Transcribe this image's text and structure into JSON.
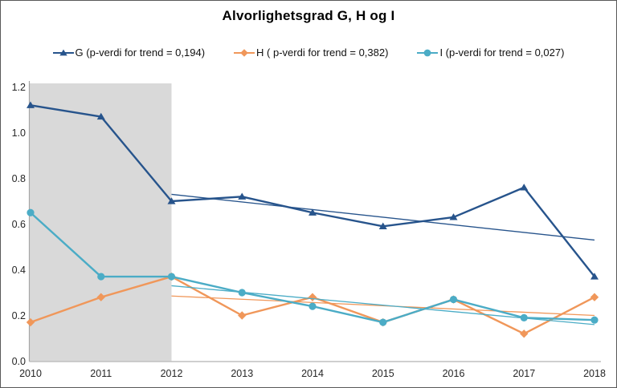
{
  "chart_data": {
    "type": "line",
    "title": "Alvorlighetsgrad G, H og I",
    "x": [
      2010,
      2011,
      2012,
      2013,
      2014,
      2015,
      2016,
      2017,
      2018
    ],
    "xticks": [
      "2010",
      "2011",
      "2012",
      "2013",
      "2014",
      "2015",
      "2016",
      "2017",
      "2018"
    ],
    "yticks": [
      "0.0",
      "0.2",
      "0.4",
      "0.6",
      "0.8",
      "1.0",
      "1.2"
    ],
    "ylim": [
      0,
      1.2
    ],
    "grid": false,
    "legend_position": "top",
    "axis_color": "#BFBFBF",
    "tick_text_color": "#262626",
    "shaded_region": {
      "from_x": 2010,
      "to_x": 2012,
      "color": "#D9D9D9"
    },
    "series": [
      {
        "id": "G",
        "label": "G (p-verdi for trend = 0,194)",
        "color": "#27548C",
        "marker": "triangle",
        "values": [
          1.12,
          1.07,
          0.7,
          0.72,
          0.65,
          0.59,
          0.63,
          0.76,
          0.37
        ],
        "trendline": {
          "from_x": 2012,
          "to_x": 2018,
          "from_y": 0.73,
          "to_y": 0.53
        }
      },
      {
        "id": "H",
        "label": "H ( p-verdi for trend = 0,382)",
        "color": "#F0975A",
        "marker": "diamond",
        "values": [
          0.17,
          0.28,
          0.37,
          0.2,
          0.28,
          0.17,
          0.27,
          0.12,
          0.28
        ],
        "trendline": {
          "from_x": 2012,
          "to_x": 2018,
          "from_y": 0.285,
          "to_y": 0.2
        }
      },
      {
        "id": "I",
        "label": "I (p-verdi for trend = 0,027)",
        "color": "#4BACC6",
        "marker": "circle",
        "values": [
          0.65,
          0.37,
          0.37,
          0.3,
          0.24,
          0.17,
          0.27,
          0.19,
          0.18
        ],
        "trendline": {
          "from_x": 2012,
          "to_x": 2018,
          "from_y": 0.33,
          "to_y": 0.16
        }
      }
    ]
  }
}
